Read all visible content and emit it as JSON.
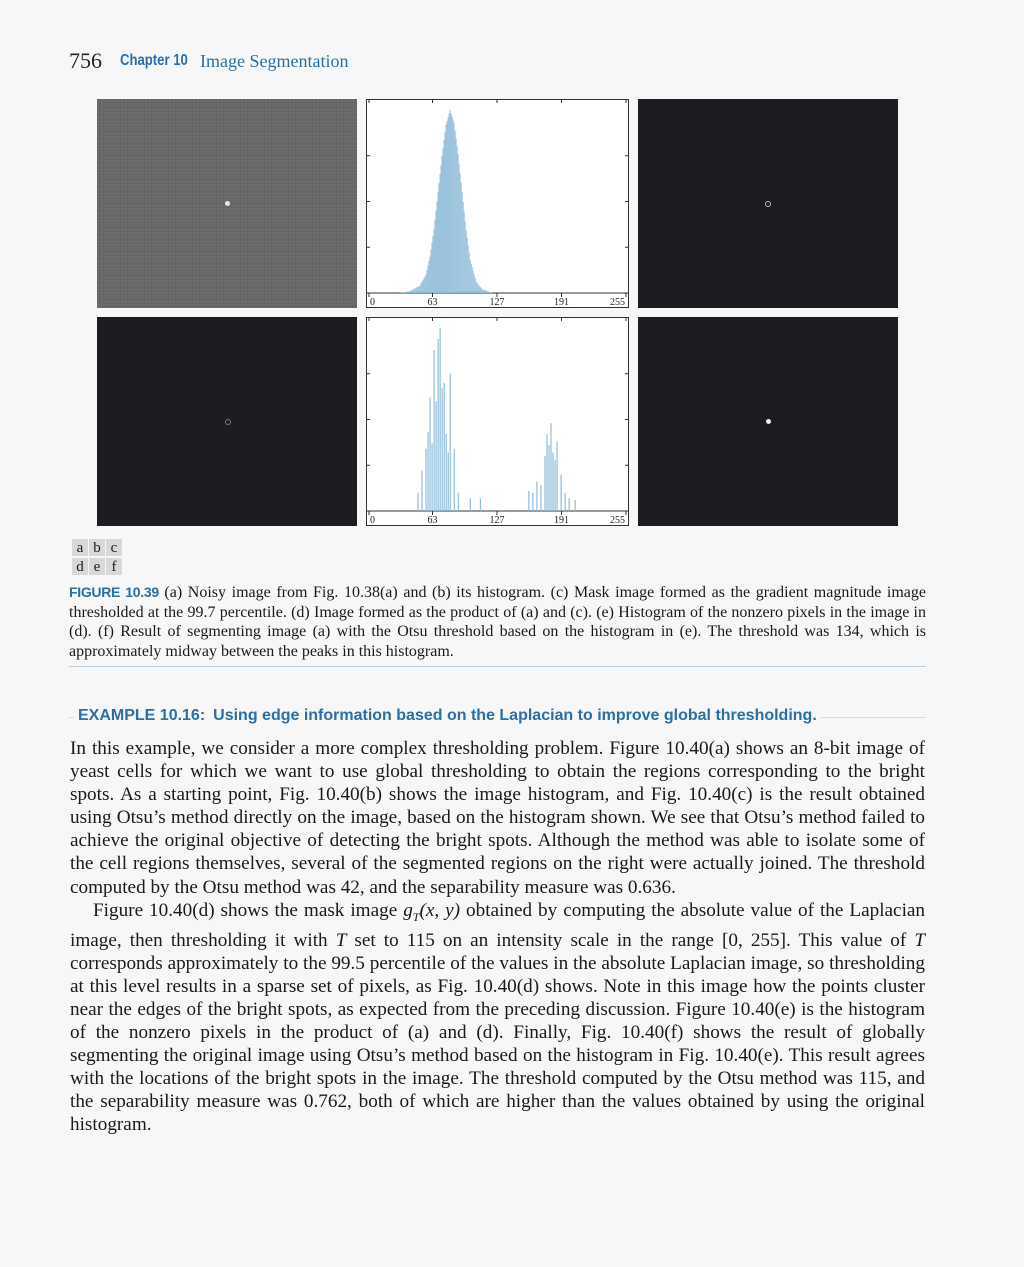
{
  "header": {
    "page_number": "756",
    "chapter_label": "Chapter 10",
    "chapter_title": "Image Segmentation"
  },
  "figure": {
    "hist_ticks": [
      "0",
      "63",
      "127",
      "191",
      "255"
    ],
    "panel_letters": [
      "a",
      "b",
      "c",
      "d",
      "e",
      "f"
    ],
    "caption_label": "FIGURE 10.39",
    "caption_text": " (a) Noisy image from Fig. 10.38(a) and (b) its histogram. (c) Mask image formed as the gradient magnitude image thresholded at the 99.7 percentile. (d) Image formed as the product of (a) and (c). (e) Histogram of the nonzero pixels in the image in (d). (f) Result of segmenting image (a) with the Otsu threshold based on the histogram in (e). The threshold was 134, which is approximately midway between the peaks in this histogram.",
    "bar_color": "#8fbcd8"
  },
  "chart_data": [
    {
      "type": "bar",
      "panel": "b",
      "xlim": [
        0,
        255
      ],
      "xticks": [
        0,
        63,
        127,
        191,
        255
      ],
      "grid": false,
      "shape": "single gaussian peak",
      "x": [
        30,
        40,
        50,
        56,
        60,
        64,
        68,
        72,
        76,
        80,
        84,
        88,
        92,
        96,
        100,
        106,
        112,
        122
      ],
      "values": [
        0.0,
        0.01,
        0.04,
        0.1,
        0.2,
        0.35,
        0.55,
        0.75,
        0.92,
        1.0,
        0.93,
        0.76,
        0.55,
        0.34,
        0.18,
        0.06,
        0.02,
        0.0
      ]
    },
    {
      "type": "bar",
      "panel": "e",
      "xlim": [
        0,
        255
      ],
      "xticks": [
        0,
        63,
        127,
        191,
        255
      ],
      "grid": false,
      "shape": "bimodal",
      "x": [
        48,
        52,
        56,
        58,
        60,
        62,
        64,
        66,
        68,
        70,
        72,
        74,
        76,
        78,
        80,
        84,
        88,
        100,
        110,
        158,
        162,
        166,
        170,
        174,
        176,
        178,
        180,
        182,
        184,
        186,
        190,
        194,
        198,
        204
      ],
      "values": [
        0.1,
        0.22,
        0.34,
        0.43,
        0.62,
        0.37,
        0.88,
        0.6,
        0.94,
        1.0,
        0.67,
        0.7,
        0.42,
        0.32,
        0.75,
        0.34,
        0.1,
        0.07,
        0.07,
        0.11,
        0.1,
        0.16,
        0.14,
        0.3,
        0.42,
        0.36,
        0.48,
        0.32,
        0.28,
        0.38,
        0.2,
        0.1,
        0.07,
        0.06
      ]
    }
  ],
  "example": {
    "label": "EXAMPLE 10.16:",
    "title": "Using edge information based on the Laplacian to improve global thresholding."
  },
  "body": {
    "p1": "In this example, we consider a more complex thresholding problem. Figure 10.40(a) shows an 8-bit image of yeast cells for which we want to use global thresholding to obtain the regions corresponding to the bright spots. As a starting point, Fig. 10.40(b) shows the image histogram, and Fig. 10.40(c) is the result obtained using Otsu’s method directly on the image, based on the histogram shown. We see that Otsu’s method failed to achieve the original objective of detecting the bright spots. Although the method was able to isolate some of the cell regions themselves, several of the segmented regions on the right were actually joined. The threshold computed by the Otsu method was 42, and the separability measure was 0.636.",
    "p2_a": "Figure 10.40(d) shows the mask image ",
    "p2_g": "g",
    "p2_sub": "T",
    "p2_args": "(x, y)",
    "p2_b": " obtained by computing the absolute value of the Laplacian image, then thresholding it with ",
    "p2_T": "T",
    "p2_c": " set to 115 on an intensity scale in the range [0, 255]. This value of ",
    "p2_T2": "T",
    "p2_d": " corresponds approximately to the 99.5 percentile of the values in the absolute Laplacian image, so thresholding at this level results in a sparse set of pixels, as Fig. 10.40(d) shows. Note in this image how the points cluster near the edges of the bright spots, as expected from the preceding discussion. Figure 10.40(e) is the histogram of the nonzero pixels in the product of (a) and (d). Finally, Fig. 10.40(f) shows the result of globally segmenting the original image using Otsu’s method based on the histogram in Fig. 10.40(e). This result agrees with the locations of the bright spots in the image. The threshold computed by the Otsu method was 115, and the separability measure was 0.762, both of which are higher than the values obtained by using the original histogram."
  }
}
